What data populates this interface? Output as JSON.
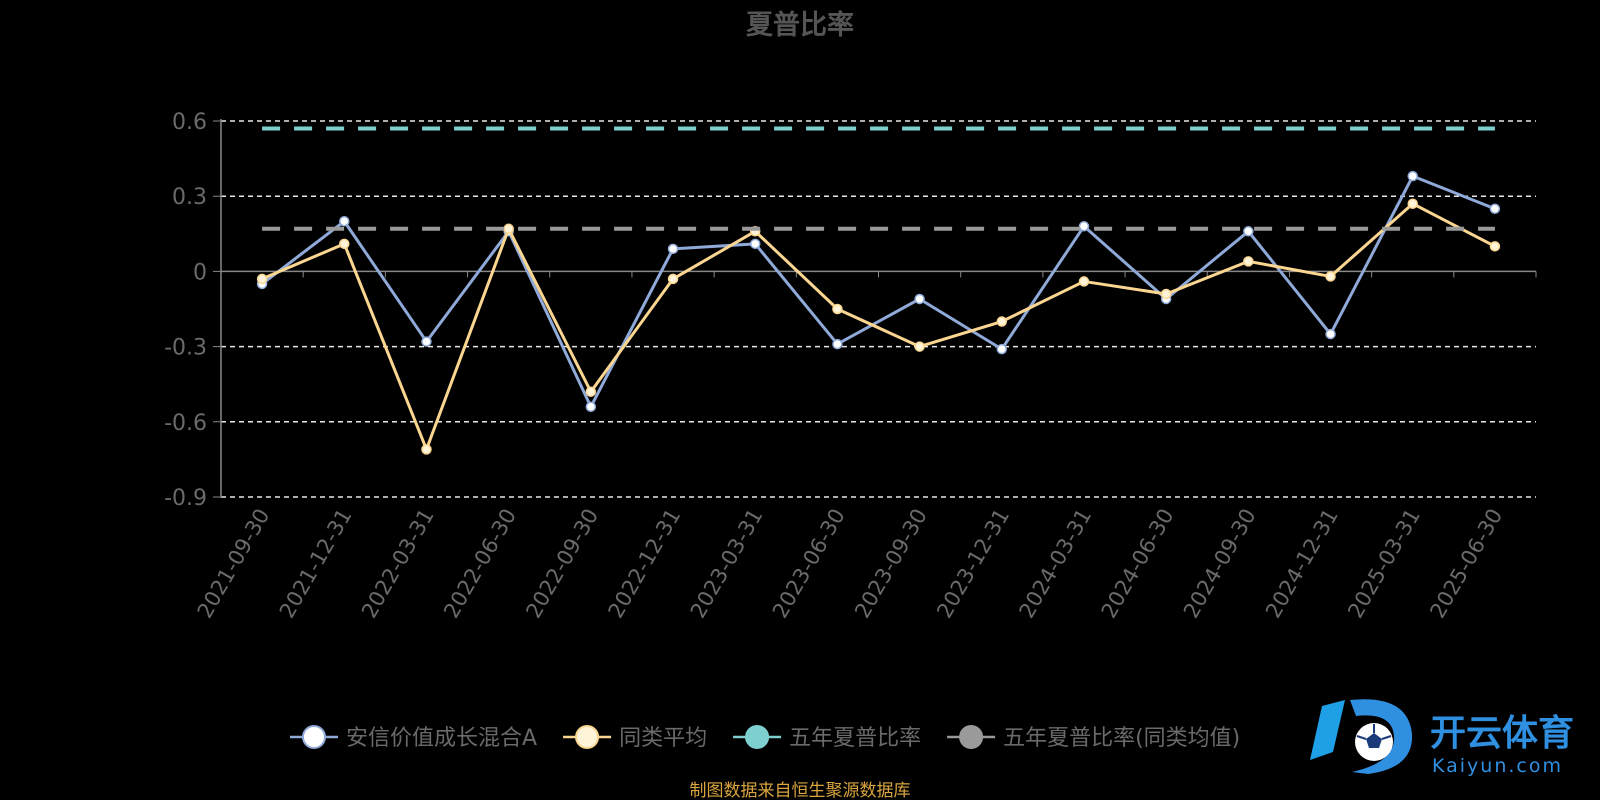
{
  "chart_data": {
    "type": "line",
    "title": "夏普比率",
    "categories": [
      "2021-09-30",
      "2021-12-31",
      "2022-03-31",
      "2022-06-30",
      "2022-09-30",
      "2022-12-31",
      "2023-03-31",
      "2023-06-30",
      "2023-09-30",
      "2023-12-31",
      "2024-03-31",
      "2024-06-30",
      "2024-09-30",
      "2024-12-31",
      "2025-03-31",
      "2025-06-30"
    ],
    "yticks": [
      "0.6",
      "0.3",
      "0",
      "-0.3",
      "-0.6",
      "-0.9"
    ],
    "ylim": [
      -0.9,
      0.6
    ],
    "grid": true,
    "legend_position": "bottom",
    "series": [
      {
        "name": "安信价值成长混合A",
        "color": "#8fa9d8",
        "marker_color": "#ffffff",
        "values": [
          -0.05,
          0.2,
          -0.28,
          0.16,
          -0.54,
          0.09,
          0.11,
          -0.29,
          -0.11,
          -0.31,
          0.18,
          -0.11,
          0.16,
          -0.25,
          0.38,
          0.25
        ]
      },
      {
        "name": "同类平均",
        "color": "#fbd691",
        "marker_color": "#fff4d8",
        "values": [
          -0.03,
          0.11,
          -0.71,
          0.17,
          -0.48,
          -0.03,
          0.16,
          -0.15,
          -0.3,
          -0.2,
          -0.04,
          -0.09,
          0.04,
          -0.02,
          0.27,
          0.1
        ]
      },
      {
        "name": "五年夏普比率",
        "color": "#7ecfd0",
        "marker_color": "#7ecfd0",
        "style": "dashed",
        "constant": 0.57
      },
      {
        "name": "五年夏普比率(同类均值)",
        "color": "#9a9a9a",
        "marker_color": "#9a9a9a",
        "style": "dashed",
        "constant": 0.17
      }
    ]
  },
  "footer": {
    "source_note": "制图数据来自恒生聚源数据库",
    "logo_text": "开云体育",
    "logo_subtext": "Kaiyun.com",
    "logo_badge": "K"
  }
}
